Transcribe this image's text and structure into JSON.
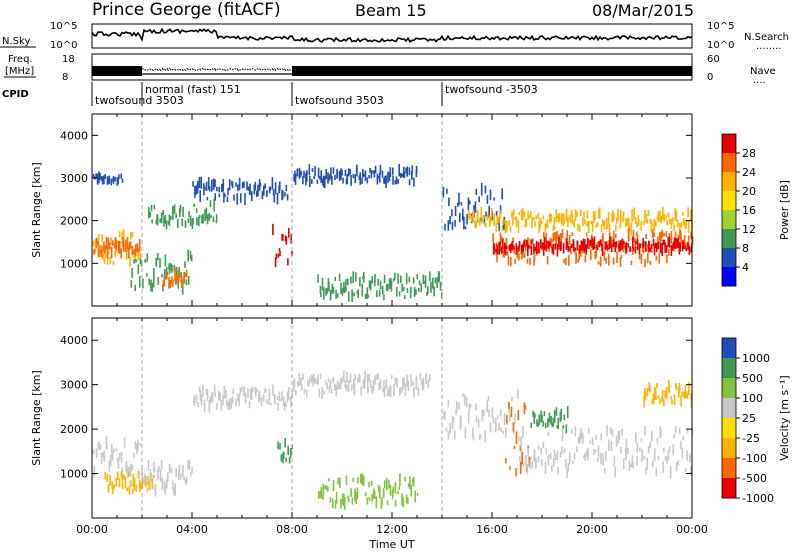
{
  "header": {
    "station": "Prince George (fitACF)",
    "beam": "Beam 15",
    "date": "08/Mar/2015"
  },
  "strips": {
    "nsky": {
      "label": "N.Sky",
      "ticks_left": [
        "10^5",
        "10^0"
      ],
      "ticks_right": [
        "10^5",
        "10^0"
      ],
      "right_label": "N.Search",
      "right_marker": "........"
    },
    "freq": {
      "label_line1": "Freq.",
      "label_line2": "[MHz]",
      "ticks_left": [
        "18",
        "8"
      ],
      "ticks_right": [
        "60",
        "0"
      ],
      "right_label": "Nave",
      "right_marker": "...."
    },
    "cpid": {
      "label": "CPID",
      "segments": [
        {
          "text": "twofsound 3503",
          "start": 0,
          "row": 1
        },
        {
          "text": "normal (fast) 151",
          "start": 2,
          "row": 0
        },
        {
          "text": "twofsound 3503",
          "start": 8,
          "row": 1
        },
        {
          "text": "twofsound -3503",
          "start": 14,
          "row": 0
        }
      ]
    }
  },
  "chart_data": [
    {
      "type": "heatmap",
      "name": "power-panel",
      "ylabel": "Slant Range [km]",
      "yticks": [
        1000,
        2000,
        3000,
        4000
      ],
      "ylim": [
        0,
        4500
      ],
      "xlim": [
        0,
        24
      ],
      "colorbar": {
        "label": "Power [dB]",
        "ticks": [
          "28",
          "24",
          "20",
          "16",
          "12",
          "8",
          "4"
        ],
        "colors": [
          "#e60000",
          "#ff6600",
          "#ffb300",
          "#ffe000",
          "#9ed32f",
          "#3c9a54",
          "#1f4fb4",
          "#0000ff"
        ]
      },
      "scatter_bands": [
        {
          "t0": 0.0,
          "t1": 1.9,
          "r0": 1000,
          "r1": 1700,
          "color": "#ffb300"
        },
        {
          "t0": 0.0,
          "t1": 1.9,
          "r0": 1200,
          "r1": 1500,
          "color": "#ff6600"
        },
        {
          "t0": 0.0,
          "t1": 1.2,
          "r0": 2900,
          "r1": 3050,
          "color": "#1f4fb4"
        },
        {
          "t0": 1.5,
          "t1": 4.0,
          "r0": 400,
          "r1": 1200,
          "color": "#3c9a54"
        },
        {
          "t0": 2.8,
          "t1": 3.8,
          "r0": 500,
          "r1": 800,
          "color": "#ff6600"
        },
        {
          "t0": 2.2,
          "t1": 5.0,
          "r0": 1800,
          "r1": 2400,
          "color": "#3c9a54"
        },
        {
          "t0": 4.0,
          "t1": 7.8,
          "r0": 2500,
          "r1": 2900,
          "color": "#1f4fb4"
        },
        {
          "t0": 7.2,
          "t1": 8.0,
          "r0": 1000,
          "r1": 1800,
          "color": "#e60000"
        },
        {
          "t0": 8.0,
          "t1": 13.0,
          "r0": 2900,
          "r1": 3200,
          "color": "#1f4fb4"
        },
        {
          "t0": 9.0,
          "t1": 14.0,
          "r0": 200,
          "r1": 700,
          "color": "#3c9a54"
        },
        {
          "t0": 14.0,
          "t1": 16.5,
          "r0": 1800,
          "r1": 2800,
          "color": "#1f4fb4"
        },
        {
          "t0": 15.0,
          "t1": 24.0,
          "r0": 1800,
          "r1": 2200,
          "color": "#ffb300"
        },
        {
          "t0": 16.0,
          "t1": 24.0,
          "r0": 1000,
          "r1": 1700,
          "color": "#ff6600"
        },
        {
          "t0": 16.0,
          "t1": 24.0,
          "r0": 1300,
          "r1": 1500,
          "color": "#e60000"
        }
      ]
    },
    {
      "type": "heatmap",
      "name": "velocity-panel",
      "ylabel": "Slant Range [km]",
      "yticks": [
        1000,
        2000,
        3000,
        4000
      ],
      "ylim": [
        0,
        4500
      ],
      "xlim": [
        0,
        24
      ],
      "xlabel": "Time UT",
      "xticks": [
        "00:00",
        "04:00",
        "08:00",
        "12:00",
        "16:00",
        "20:00",
        "00:00"
      ],
      "colorbar": {
        "label": "Velocity [m s⁻¹]",
        "ticks": [
          "1000",
          "500",
          "100",
          "25",
          "-25",
          "-100",
          "-500",
          "-1000"
        ],
        "colors": [
          "#1f4fb4",
          "#3c9a54",
          "#7fc43c",
          "#c8c8c8",
          "#ffe000",
          "#ffb300",
          "#ff6600",
          "#e60000"
        ]
      },
      "scatter_bands": [
        {
          "t0": 0.0,
          "t1": 2.0,
          "r0": 1000,
          "r1": 1700,
          "color": "#c8c8c8"
        },
        {
          "t0": 0.5,
          "t1": 2.5,
          "r0": 600,
          "r1": 1000,
          "color": "#ffb300"
        },
        {
          "t0": 2.0,
          "t1": 4.0,
          "r0": 600,
          "r1": 1200,
          "color": "#c8c8c8"
        },
        {
          "t0": 4.0,
          "t1": 8.0,
          "r0": 2500,
          "r1": 2900,
          "color": "#c8c8c8"
        },
        {
          "t0": 7.4,
          "t1": 8.0,
          "r0": 1300,
          "r1": 1700,
          "color": "#3c9a54"
        },
        {
          "t0": 8.0,
          "t1": 13.5,
          "r0": 2800,
          "r1": 3200,
          "color": "#c8c8c8"
        },
        {
          "t0": 9.0,
          "t1": 13.0,
          "r0": 300,
          "r1": 900,
          "color": "#7fc43c"
        },
        {
          "t0": 14.0,
          "t1": 17.0,
          "r0": 1800,
          "r1": 2800,
          "color": "#c8c8c8"
        },
        {
          "t0": 16.5,
          "t1": 17.5,
          "r0": 1000,
          "r1": 2600,
          "color": "#ff6600"
        },
        {
          "t0": 17.5,
          "t1": 19.0,
          "r0": 2000,
          "r1": 2400,
          "color": "#3c9a54"
        },
        {
          "t0": 17.0,
          "t1": 24.0,
          "r0": 1000,
          "r1": 2000,
          "color": "#c8c8c8"
        },
        {
          "t0": 22.0,
          "t1": 24.0,
          "r0": 2600,
          "r1": 3000,
          "color": "#ffb300"
        }
      ]
    }
  ]
}
